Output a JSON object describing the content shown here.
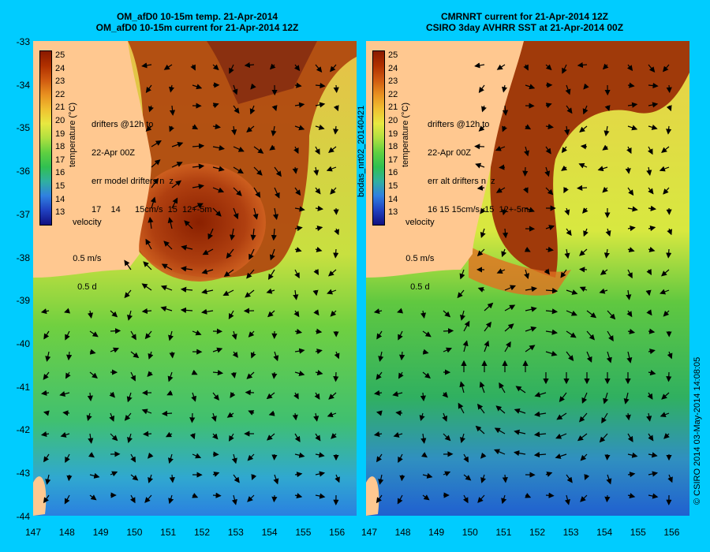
{
  "left_title_1": "OM_afD0 10-15m temp. 21-Apr-2014",
  "left_title_2": "OM_afD0 10-15m current for 21-Apr-2014 12Z",
  "right_title_1": "CMRNRT current for 21-Apr-2014 12Z",
  "right_title_2": "CSIRO 3day AVHRR SST at 21-Apr-2014 00Z",
  "y_ticks": [
    "-33",
    "-34",
    "-35",
    "-36",
    "-37",
    "-38",
    "-39",
    "-40",
    "-41",
    "-42",
    "-43",
    "-44"
  ],
  "x_ticks": [
    "147",
    "148",
    "149",
    "150",
    "151",
    "152",
    "153",
    "154",
    "155",
    "156"
  ],
  "colorbar": {
    "title": "temperature (°C)",
    "labels": [
      "25",
      "24",
      "23",
      "22",
      "21",
      "20",
      "19",
      "18",
      "17",
      "16",
      "15",
      "14",
      "13"
    ],
    "colors": [
      "#8a1a00",
      "#b03000",
      "#d05a10",
      "#e89020",
      "#f0c030",
      "#e8e840",
      "#b0e040",
      "#60d040",
      "#30c050",
      "#30b0a0",
      "#3080e0",
      "#2040c0",
      "#101080"
    ]
  },
  "left_legend": {
    "drifters_line1": "drifters @12h to",
    "drifters_line2": "22-Apr 00Z",
    "err_line": "err model drifters n  z",
    "values_line": "17    14      15cm/s  15  12+-5m",
    "velocity_label": "velocity",
    "speed_label": "0.5 m/s",
    "duration_label": "0.5 d"
  },
  "right_legend": {
    "drifters_line1": "drifters @12h to",
    "drifters_line2": "22-Apr 00Z",
    "err_line": "err alt drifters n  z",
    "values_line": "16 15 15cm/s  15  12+-5m",
    "velocity_label": "velocity",
    "speed_label": "0.5 m/s",
    "duration_label": "0.5 d"
  },
  "center_label": "bodas_nrt02_20140421",
  "credit_label": "© CSIRO 2014   03-May-2014 14:08:05"
}
